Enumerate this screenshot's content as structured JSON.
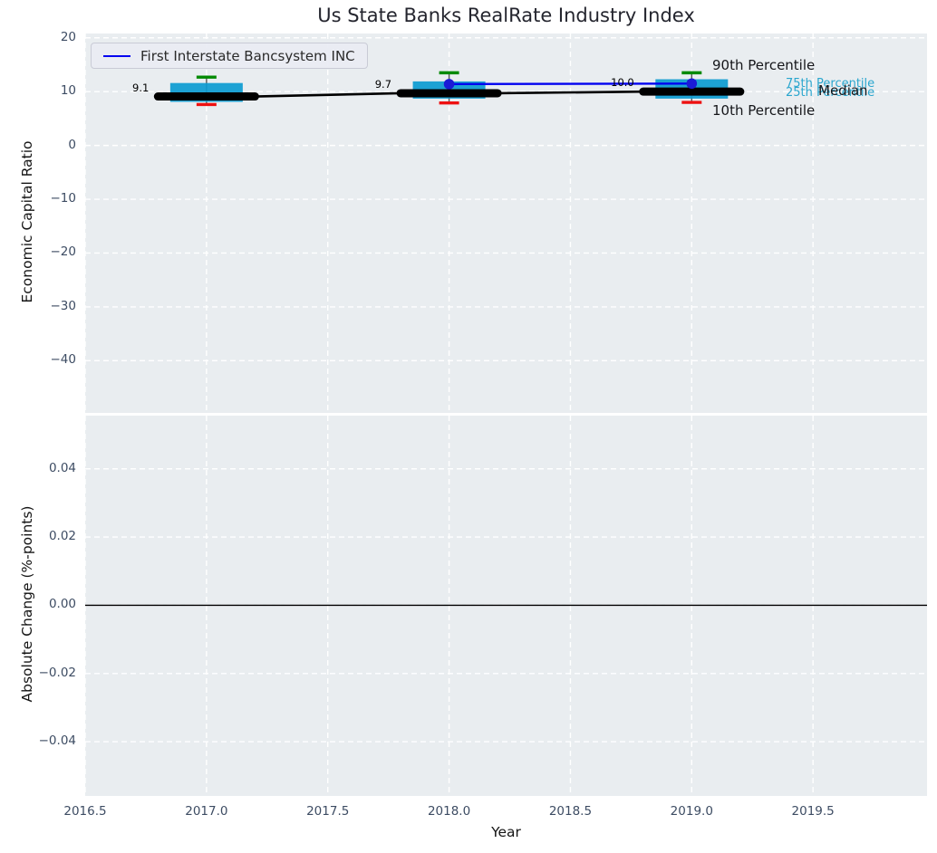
{
  "title": "Us State Banks RealRate Industry Index",
  "legend": {
    "series_label": "First Interstate Bancsystem INC"
  },
  "annotations": {
    "p90": "90th Percentile",
    "p75": "75th Percentile",
    "p25": "25th Percentile",
    "median": "Median",
    "p10": "10th Percentile"
  },
  "top_axis": {
    "ylabel": "Economic Capital Ratio"
  },
  "bottom_axis": {
    "ylabel": "Absolute Change (%-points)"
  },
  "x_axis": {
    "label": "Year"
  },
  "chart_data": {
    "type": "boxplot+line",
    "title": "Us State Banks RealRate Industry Index",
    "xlabel": "Year",
    "xlim": [
      2016.5,
      2019.97
    ],
    "xticks": [
      2016.5,
      2017,
      2017.5,
      2018,
      2018.5,
      2019,
      2019.5
    ],
    "xtick_labels": [
      "2016.5",
      "2017.0",
      "2017.5",
      "2018.0",
      "2018.5",
      "2019.0",
      "2019.5"
    ],
    "grid": "white dashed lines on light panel background",
    "legend_position": "upper left",
    "colors": {
      "box": "#0b9bd1",
      "cap_high": "#038a03",
      "cap_low": "#ee1111",
      "median": "#000000",
      "line": "#0202f0",
      "dot": "#1b1bd6",
      "panel_bg": "#e9edf0",
      "annotation_cyan": "#2aa6ce"
    },
    "panels": [
      {
        "ylabel": "Economic Capital Ratio",
        "ylim": [
          -49.7,
          20.8
        ],
        "yticks": [
          20,
          10,
          0,
          -10,
          -20,
          -30,
          -40
        ],
        "ytick_labels": [
          "20",
          "10",
          "0",
          "−10",
          "−20",
          "−30",
          "−40"
        ],
        "boxes": [
          {
            "year": 2017,
            "p10": 7.6,
            "p25": 8.1,
            "median": 9.1,
            "p75": 11.6,
            "p90": 12.7
          },
          {
            "year": 2018,
            "p10": 7.9,
            "p25": 8.7,
            "median": 9.7,
            "p75": 11.9,
            "p90": 13.5
          },
          {
            "year": 2019,
            "p10": 8.0,
            "p25": 8.7,
            "median": 10.0,
            "p75": 12.3,
            "p90": 13.5
          }
        ],
        "median_labels": [
          "9.1",
          "9.7",
          "10.0"
        ],
        "company_series": {
          "name": "First Interstate Bancsystem INC",
          "x": [
            2018,
            2019
          ],
          "y": [
            11.4,
            11.5
          ]
        }
      },
      {
        "ylabel": "Absolute Change (%-points)",
        "ylim": [
          -0.0559,
          0.0556
        ],
        "yticks": [
          0.04,
          0.02,
          0,
          -0.02,
          -0.04
        ],
        "ytick_labels": [
          "0.04",
          "0.02",
          "0.00",
          "−0.02",
          "−0.04"
        ],
        "zero_line": 0.0
      }
    ]
  }
}
